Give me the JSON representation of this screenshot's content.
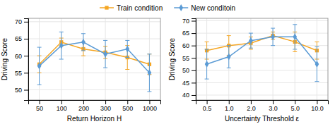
{
  "chart_data": [
    {
      "type": "line",
      "xlabel": "Return Horizon H",
      "ylabel": "Driving Score",
      "categories": [
        "50",
        "100",
        "200",
        "300",
        "500",
        "1000"
      ],
      "series": [
        {
          "name": "Train condition",
          "color": "#f5a623",
          "marker": "square",
          "values": [
            57.5,
            64.0,
            62.0,
            61.0,
            59.5,
            57.5
          ],
          "errors": [
            2.5,
            1.2,
            2.0,
            1.8,
            3.5,
            3.0
          ]
        },
        {
          "name": "New conditoin",
          "color": "#5b9bd5",
          "marker": "diamond",
          "values": [
            57.0,
            63.0,
            64.0,
            60.5,
            62.0,
            55.0
          ],
          "errors": [
            5.5,
            4.0,
            2.5,
            4.0,
            2.5,
            5.5
          ]
        }
      ],
      "ylim": [
        47,
        71
      ],
      "yticks": [
        50,
        55,
        60,
        65,
        70
      ],
      "grid": true,
      "legend": "top"
    },
    {
      "type": "line",
      "xlabel": "Uncertainty Threshold ε",
      "ylabel": "Driving Score",
      "categories": [
        "0.5",
        "1.0",
        "2.0",
        "3.0",
        "5.0",
        "10.0"
      ],
      "series": [
        {
          "color": "#f5a623",
          "marker": "square",
          "values": [
            58.0,
            60.0,
            61.0,
            64.0,
            61.5,
            58.0
          ],
          "errors": [
            3.5,
            4.0,
            2.5,
            1.5,
            4.0,
            3.5
          ]
        },
        {
          "color": "#5b9bd5",
          "marker": "diamond",
          "values": [
            52.5,
            55.5,
            62.0,
            63.5,
            63.5,
            52.5
          ],
          "errors": [
            6.0,
            4.5,
            3.0,
            3.5,
            5.0,
            7.0
          ]
        }
      ],
      "ylim": [
        38,
        71
      ],
      "yticks": [
        40,
        45,
        50,
        55,
        60,
        65,
        70
      ],
      "grid": true
    }
  ]
}
